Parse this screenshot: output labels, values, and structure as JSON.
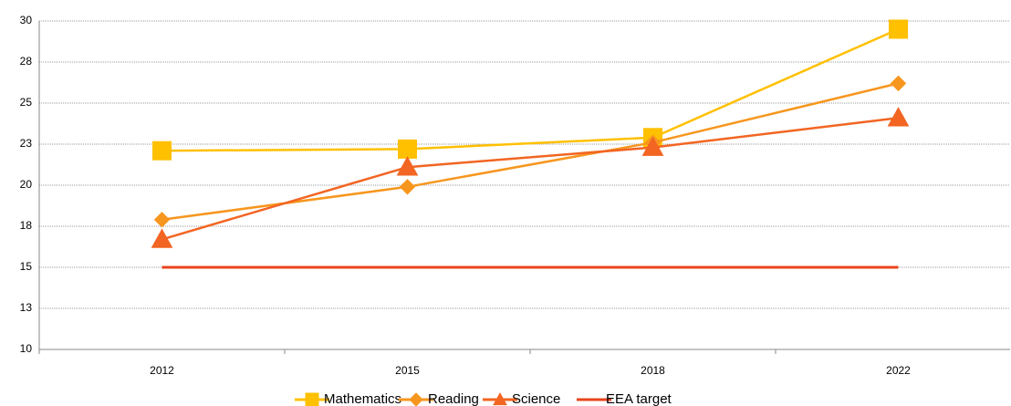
{
  "chart_data": {
    "type": "line",
    "categories": [
      "2012",
      "2015",
      "2018",
      "2022"
    ],
    "series": [
      {
        "name": "Mathematics",
        "color": "#FFC000",
        "marker": "square",
        "values": [
          22.1,
          22.2,
          22.9,
          29.5
        ]
      },
      {
        "name": "Reading",
        "color": "#F7961E",
        "marker": "diamond",
        "values": [
          17.9,
          19.9,
          22.6,
          26.2
        ]
      },
      {
        "name": "Science",
        "color": "#F26522",
        "marker": "triangle",
        "values": [
          16.7,
          21.1,
          22.3,
          24.1
        ]
      },
      {
        "name": "EEA target",
        "color": "#E8441C",
        "marker": "none",
        "values": [
          15,
          15,
          15,
          15
        ]
      }
    ],
    "ylim": [
      10,
      30
    ],
    "yticks": [
      10,
      {
        "value": 12.5,
        "label": "13"
      },
      15,
      {
        "value": 17.5,
        "label": "18"
      },
      20,
      {
        "value": 22.5,
        "label": "23"
      },
      25,
      {
        "value": 27.5,
        "label": "28"
      },
      30
    ],
    "grid": true,
    "legend": "bottom"
  }
}
